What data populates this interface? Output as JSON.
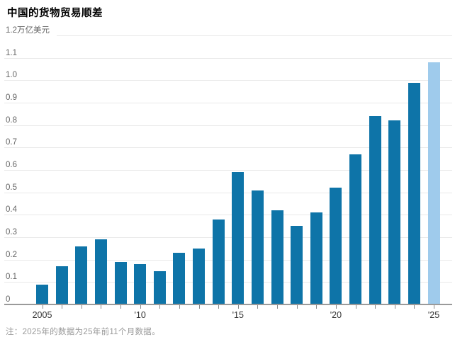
{
  "title": "中国的货物贸易顺差",
  "note": "注：2025年的数据为25年前11个月数据。",
  "colors": {
    "bar": "#0e74a8",
    "bar_highlight": "#9fcbec",
    "gridline": "#e9e9e9",
    "axis_line": "#9a9a9a",
    "tick": "#8a8a8a",
    "y_label": "#666666",
    "x_label": "#333333",
    "note": "#999999",
    "title": "#000000",
    "background": "#ffffff"
  },
  "chart_data": {
    "type": "bar",
    "title": "中国的货物贸易顺差",
    "unit_label": "万亿美元",
    "y_top_label": "1.2万亿美元",
    "categories": [
      2005,
      2006,
      2007,
      2008,
      2009,
      2010,
      2011,
      2012,
      2013,
      2014,
      2015,
      2016,
      2017,
      2018,
      2019,
      2020,
      2021,
      2022,
      2023,
      2024,
      2025
    ],
    "values": [
      0.09,
      0.17,
      0.26,
      0.29,
      0.19,
      0.18,
      0.15,
      0.23,
      0.25,
      0.38,
      0.59,
      0.51,
      0.42,
      0.35,
      0.41,
      0.52,
      0.67,
      0.84,
      0.82,
      0.99,
      1.08
    ],
    "highlight_category": 2025,
    "xlabel": "",
    "ylabel": "万亿美元",
    "ylim": [
      0,
      1.2
    ],
    "y_tick_step": 0.1,
    "y_tick_labels": [
      "0",
      "0.1",
      "0.2",
      "0.3",
      "0.4",
      "0.5",
      "0.6",
      "0.7",
      "0.8",
      "0.9",
      "1.0",
      "1.1",
      "1.2万亿美元"
    ],
    "x_tick_labels": [
      {
        "year": 2005,
        "label": "2005"
      },
      {
        "year": 2010,
        "label": "'10"
      },
      {
        "year": 2015,
        "label": "'15"
      },
      {
        "year": 2020,
        "label": "'20"
      },
      {
        "year": 2025,
        "label": "'25"
      }
    ],
    "grid": true,
    "legend": "none",
    "note": "注：2025年的数据为25年前11个月数据。"
  }
}
